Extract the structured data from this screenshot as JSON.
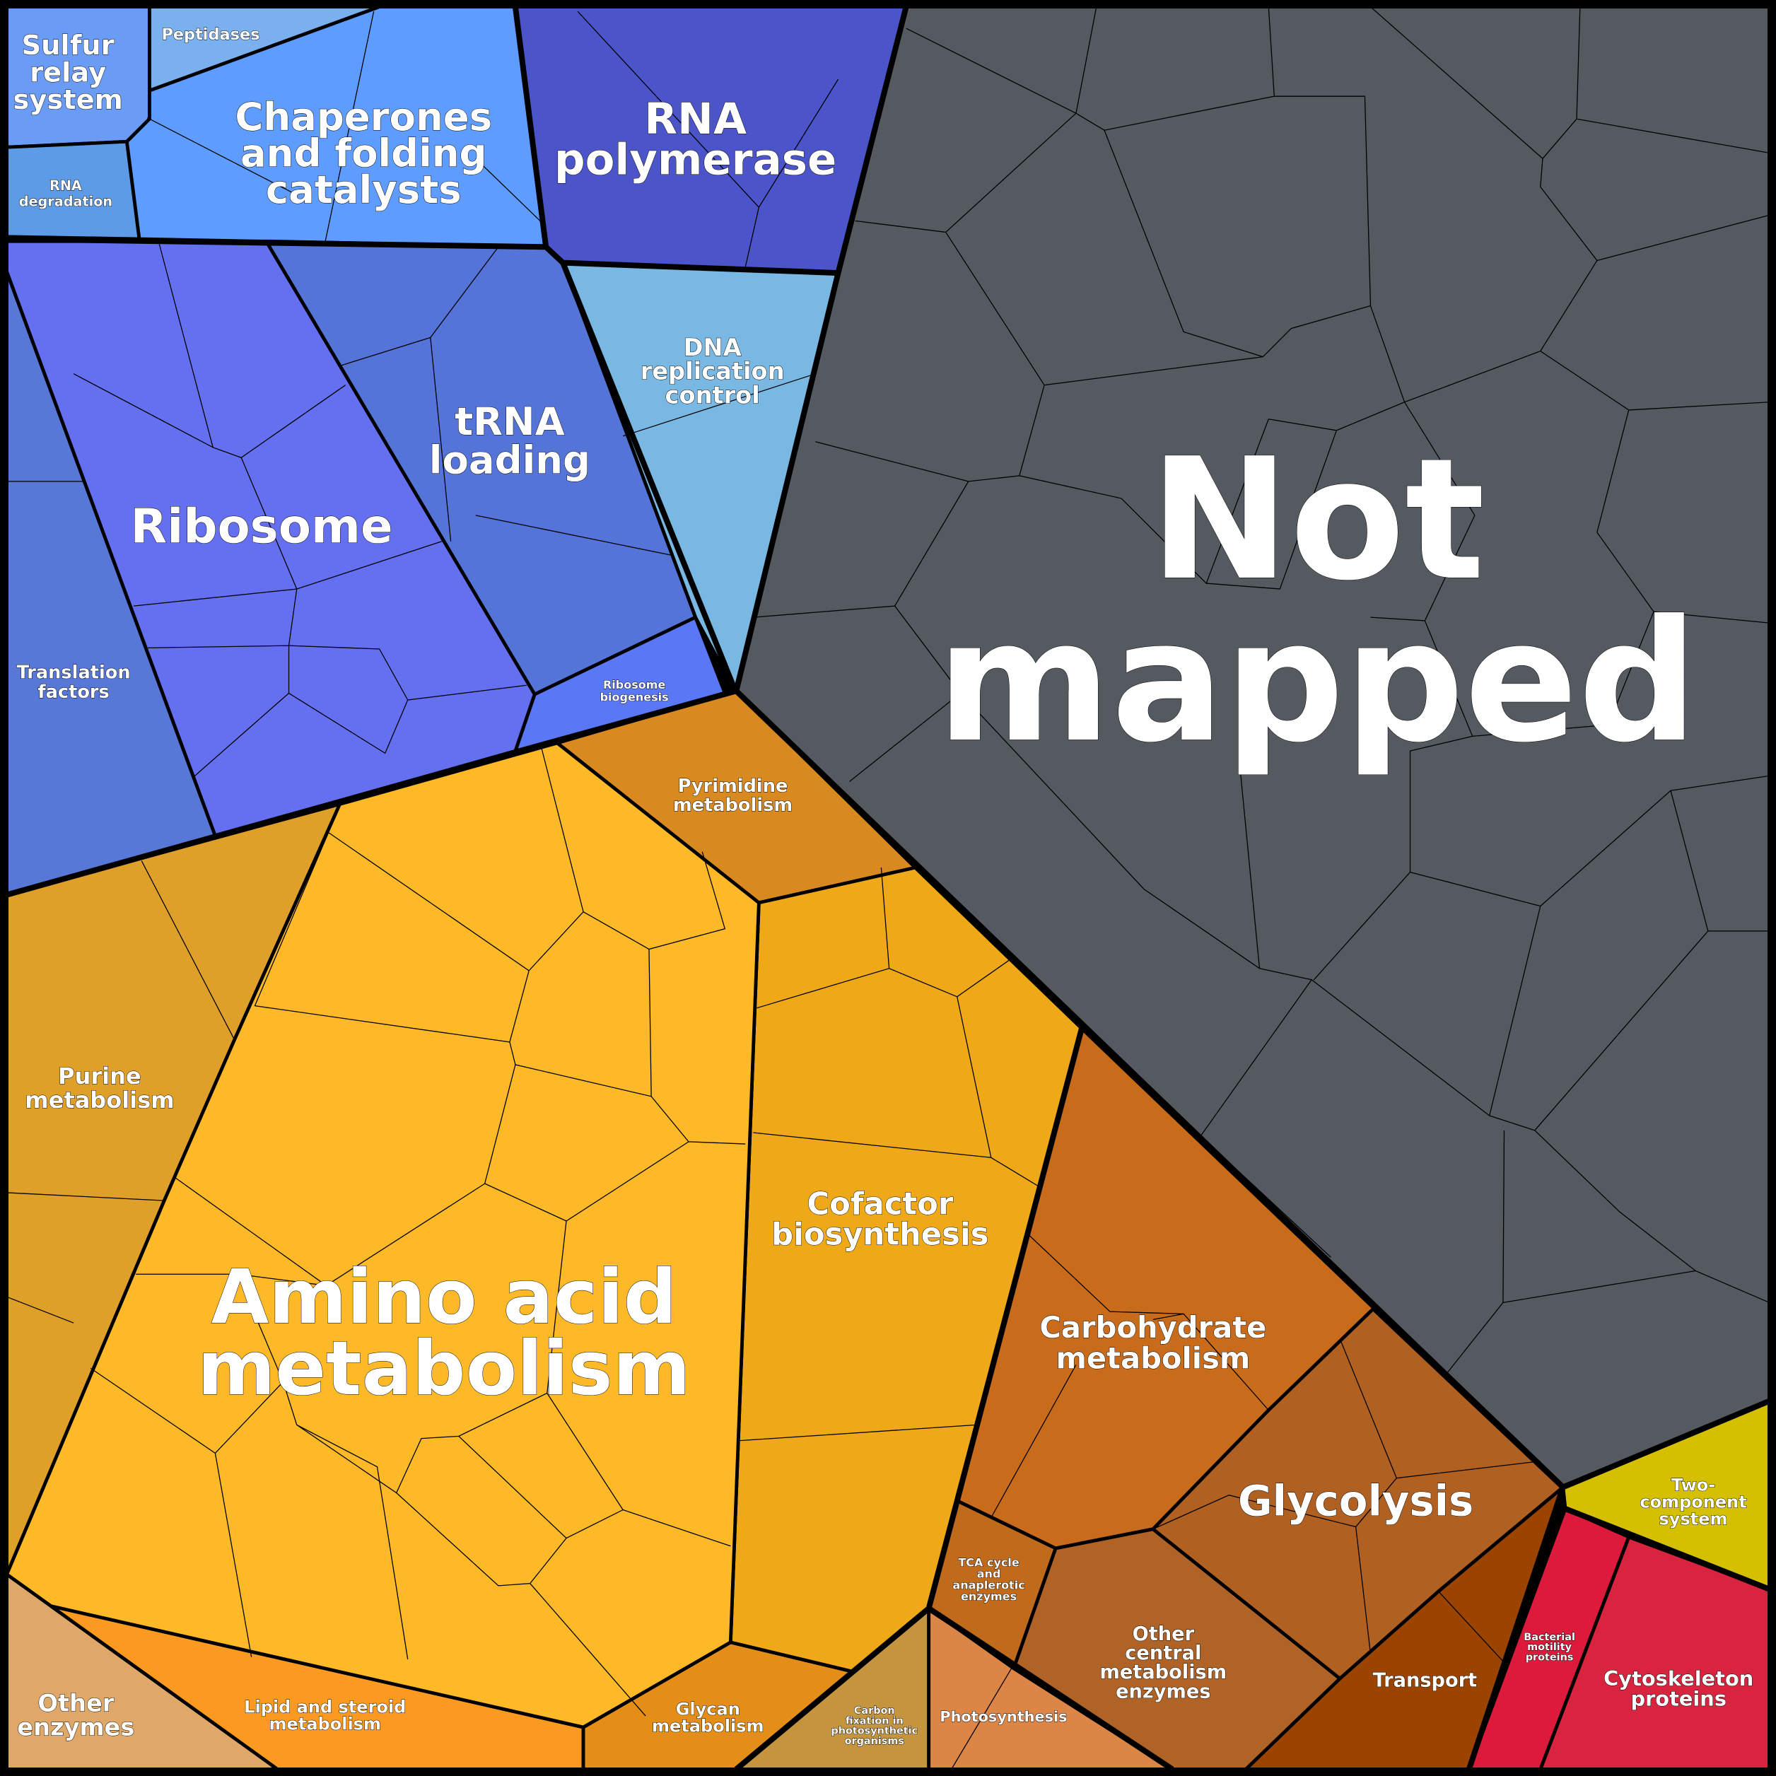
{
  "regions": {
    "sulfur_relay": {
      "lines": [
        "Sulfur",
        "relay",
        "system"
      ],
      "color": "#6a9cf5"
    },
    "peptidases": {
      "lines": [
        "Peptidases"
      ],
      "color": "#7ab0ee"
    },
    "rna_degradation": {
      "lines": [
        "RNA",
        "degradation"
      ],
      "color": "#5e9be6"
    },
    "chaperones": {
      "lines": [
        "Chaperones",
        "and folding",
        "catalysts"
      ],
      "color": "#5f9cff"
    },
    "rna_polymerase": {
      "lines": [
        "RNA",
        "polymerase"
      ],
      "color": "#4b55c9"
    },
    "dna_replication": {
      "lines": [
        "DNA",
        "replication",
        "control"
      ],
      "color": "#7ab8e4"
    },
    "trna_loading": {
      "lines": [
        "tRNA",
        "loading"
      ],
      "color": "#5474d8"
    },
    "ribosome_biogenesis": {
      "lines": [
        "Ribosome",
        "biogenesis"
      ],
      "color": "#5a78f5"
    },
    "ribosome": {
      "lines": [
        "Ribosome"
      ],
      "color": "#6470f0"
    },
    "translation_factors": {
      "lines": [
        "Translation",
        "factors"
      ],
      "color": "#5878d8"
    },
    "not_mapped": {
      "lines": [
        "Not",
        "mapped"
      ],
      "color": "#555a61"
    },
    "two_component": {
      "lines": [
        "Two-",
        "component",
        "system"
      ],
      "color": "#d4c000"
    },
    "bacterial_motility": {
      "lines": [
        "Bacterial",
        "motility",
        "proteins"
      ],
      "color": "#dc1a3c"
    },
    "cytoskeleton": {
      "lines": [
        "Cytoskeleton",
        "proteins"
      ],
      "color": "#d8243f"
    },
    "purine": {
      "lines": [
        "Purine",
        "metabolism"
      ],
      "color": "#dfa02a"
    },
    "pyrimidine": {
      "lines": [
        "Pyrimidine",
        "metabolism"
      ],
      "color": "#d88a20"
    },
    "cofactor": {
      "lines": [
        "Cofactor",
        "biosynthesis"
      ],
      "color": "#eea818"
    },
    "amino_acid": {
      "lines": [
        "Amino acid",
        "metabolism"
      ],
      "color": "#fdb927"
    },
    "other_enzymes": {
      "lines": [
        "Other",
        "enzymes"
      ],
      "color": "#e0a868"
    },
    "lipid": {
      "lines": [
        "Lipid and steroid",
        "metabolism"
      ],
      "color": "#fa9a20"
    },
    "glycan": {
      "lines": [
        "Glycan",
        "metabolism"
      ],
      "color": "#e48e18"
    },
    "carbon_fixation": {
      "lines": [
        "Carbon",
        "fixation in",
        "photosynthetic",
        "organisms"
      ],
      "color": "#c4943f"
    },
    "photosynthesis": {
      "lines": [
        "Photosynthesis"
      ],
      "color": "#db8547"
    },
    "carbohydrate": {
      "lines": [
        "Carbohydrate",
        "metabolism"
      ],
      "color": "#c86b1b"
    },
    "tca": {
      "lines": [
        "TCA cycle",
        "and",
        "anaplerotic",
        "enzymes"
      ],
      "color": "#c06a1c"
    },
    "other_central": {
      "lines": [
        "Other",
        "central",
        "metabolism",
        "enzymes"
      ],
      "color": "#b06326"
    },
    "glycolysis": {
      "lines": [
        "Glycolysis"
      ],
      "color": "#b06020"
    },
    "transport": {
      "lines": [
        "Transport"
      ],
      "color": "#9a4400"
    }
  }
}
